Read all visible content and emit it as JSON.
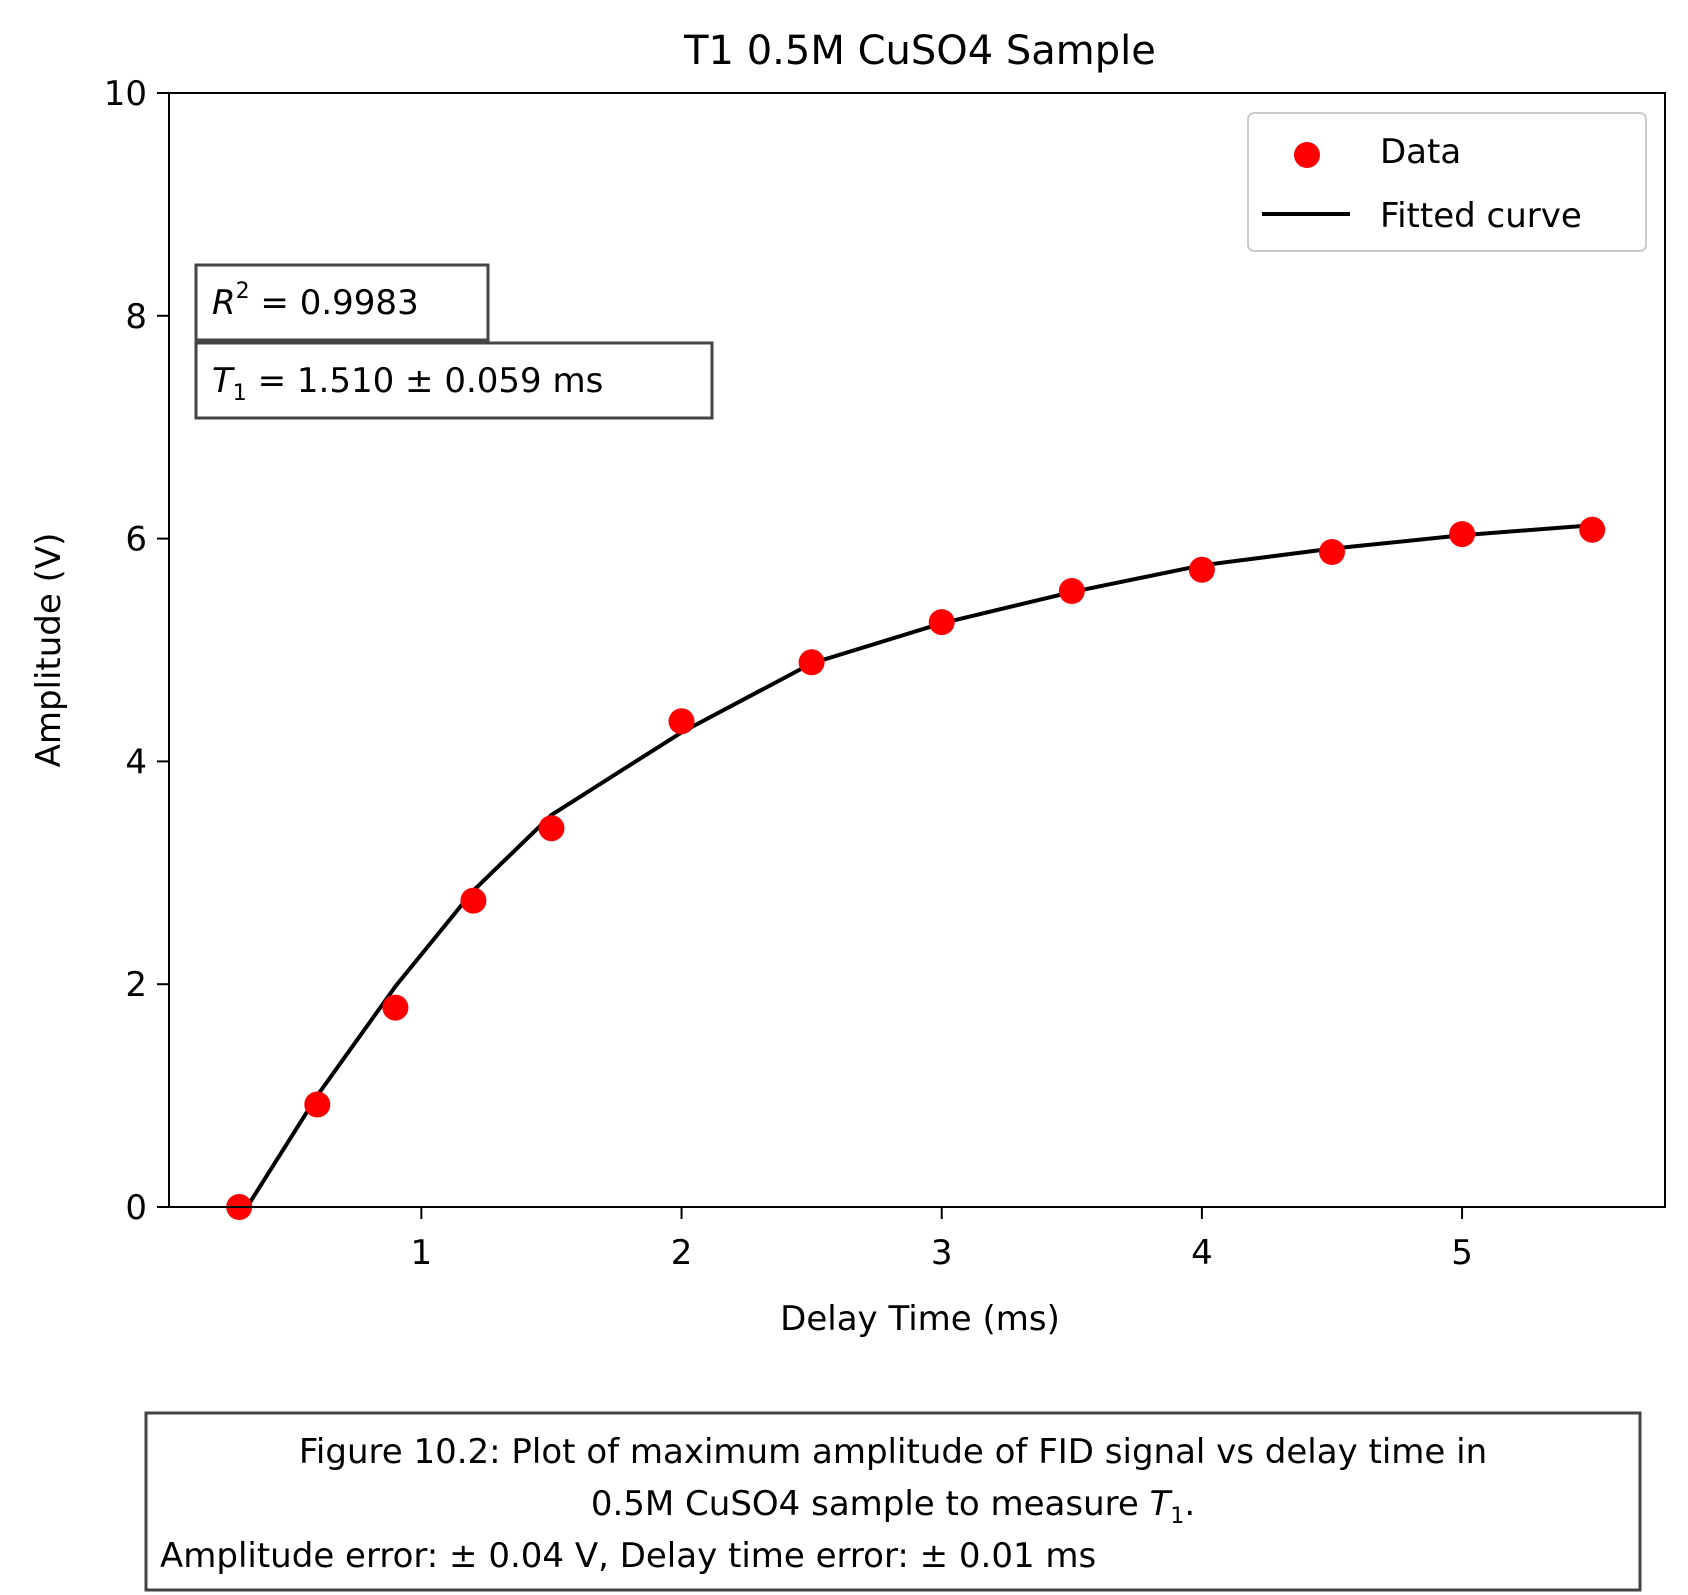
{
  "chart_data": {
    "type": "scatter",
    "title": "T1 0.5M CuSO4 Sample",
    "xlabel": "Delay Time (ms)",
    "ylabel": "Amplitude (V)",
    "xlim": [
      0.03,
      5.78
    ],
    "ylim": [
      0,
      10
    ],
    "x_ticks": [
      1,
      2,
      3,
      4,
      5
    ],
    "y_ticks": [
      0,
      2,
      4,
      6,
      8,
      10
    ],
    "grid": false,
    "legend_position": "top-right",
    "series": [
      {
        "name": "Data",
        "kind": "scatter",
        "color": "#ff0000",
        "x": [
          0.3,
          0.6,
          0.9,
          1.2,
          1.5,
          2.0,
          2.5,
          3.0,
          3.5,
          4.0,
          4.5,
          5.0,
          5.5
        ],
        "y": [
          0.0,
          0.92,
          1.79,
          2.75,
          3.4,
          4.36,
          4.89,
          5.25,
          5.53,
          5.72,
          5.88,
          6.04,
          6.08
        ]
      },
      {
        "name": "Fitted curve",
        "kind": "line",
        "color": "#000000",
        "x": [
          0.33,
          0.6,
          0.9,
          1.2,
          1.5,
          2.0,
          2.5,
          3.0,
          3.5,
          4.0,
          4.5,
          5.0,
          5.5
        ],
        "y": [
          0.0,
          1.0,
          1.98,
          2.84,
          3.52,
          4.26,
          4.88,
          5.24,
          5.52,
          5.76,
          5.91,
          6.03,
          6.12
        ]
      }
    ],
    "annotations": {
      "r2_label": "R",
      "r2_sup": "2",
      "r2_value": " = 0.9983",
      "t1_label": "T",
      "t1_sub": "1",
      "t1_value": " = 1.510 ± 0.059 ms"
    }
  },
  "caption": {
    "line1": "Figure 10.2: Plot of maximum amplitude of FID signal vs delay time in",
    "line2_prefix": "0.5M CuSO4 sample to measure ",
    "line2_sym": "T",
    "line2_sub": "1",
    "line2_suffix": ".",
    "line3": "Amplitude error: ± 0.04 V, Delay time error: ± 0.01 ms"
  }
}
